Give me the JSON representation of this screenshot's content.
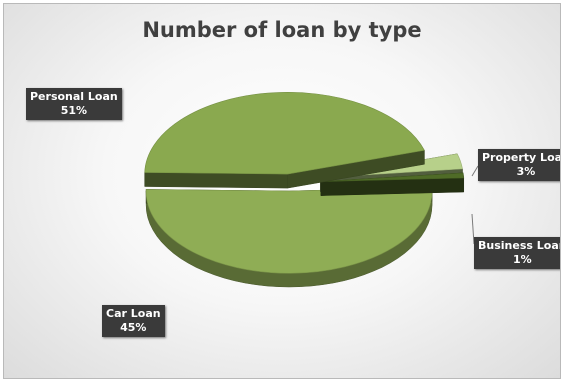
{
  "chart_data": {
    "type": "pie",
    "title": "Number of loan by type",
    "style": "3d-exploded",
    "slices": [
      {
        "name": "Personal Loan",
        "value": 51,
        "label": "51%",
        "color": "#8fad55"
      },
      {
        "name": "Car Loan",
        "value": 45,
        "label": "45%",
        "color": "#8aa94f"
      },
      {
        "name": "Property Loan",
        "value": 3,
        "label": "3%",
        "color": "#b7d08a"
      },
      {
        "name": "Business Loan",
        "value": 1,
        "label": "1%",
        "color": "#4f6b27"
      }
    ],
    "label_style": {
      "background": "#3a3a3a",
      "text_color": "#ffffff"
    },
    "legend": "none"
  }
}
